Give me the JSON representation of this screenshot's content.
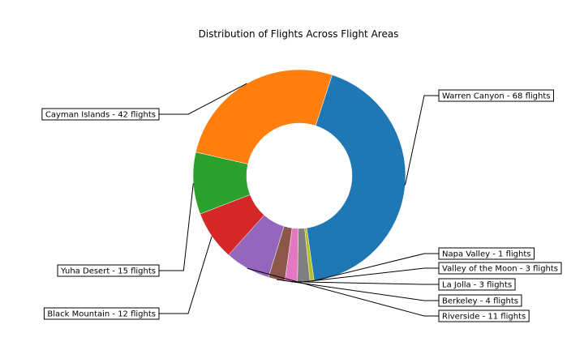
{
  "chart_data": {
    "type": "pie",
    "donut": true,
    "title": "Distribution of Flights Across Flight Areas",
    "start_angle_deg": 72,
    "direction": "clockwise",
    "slices": [
      {
        "name": "Warren Canyon",
        "value": 68,
        "label": "Warren Canyon - 68 flights",
        "color": "#1f77b4",
        "side": "right"
      },
      {
        "name": "Napa Valley",
        "value": 1,
        "label": "Napa Valley - 1 flights",
        "color": "#bcbd22",
        "side": "right"
      },
      {
        "name": "Valley of the Moon",
        "value": 3,
        "label": "Valley of the Moon - 3 flights",
        "color": "#7f7f7f",
        "side": "right"
      },
      {
        "name": "La Jolla",
        "value": 3,
        "label": "La Jolla - 3 flights",
        "color": "#e377c2",
        "side": "right"
      },
      {
        "name": "Berkeley",
        "value": 4,
        "label": "Berkeley - 4 flights",
        "color": "#8c564b",
        "side": "right"
      },
      {
        "name": "Riverside",
        "value": 11,
        "label": "Riverside - 11 flights",
        "color": "#9467bd",
        "side": "right"
      },
      {
        "name": "Black Mountain",
        "value": 12,
        "label": "Black Mountain - 12 flights",
        "color": "#d62728",
        "side": "left"
      },
      {
        "name": "Yuha Desert",
        "value": 15,
        "label": "Yuha Desert - 15 flights",
        "color": "#2ca02c",
        "side": "left"
      },
      {
        "name": "Cayman Islands",
        "value": 42,
        "label": "Cayman Islands - 42 flights",
        "color": "#ff7f0e",
        "side": "left"
      }
    ]
  }
}
